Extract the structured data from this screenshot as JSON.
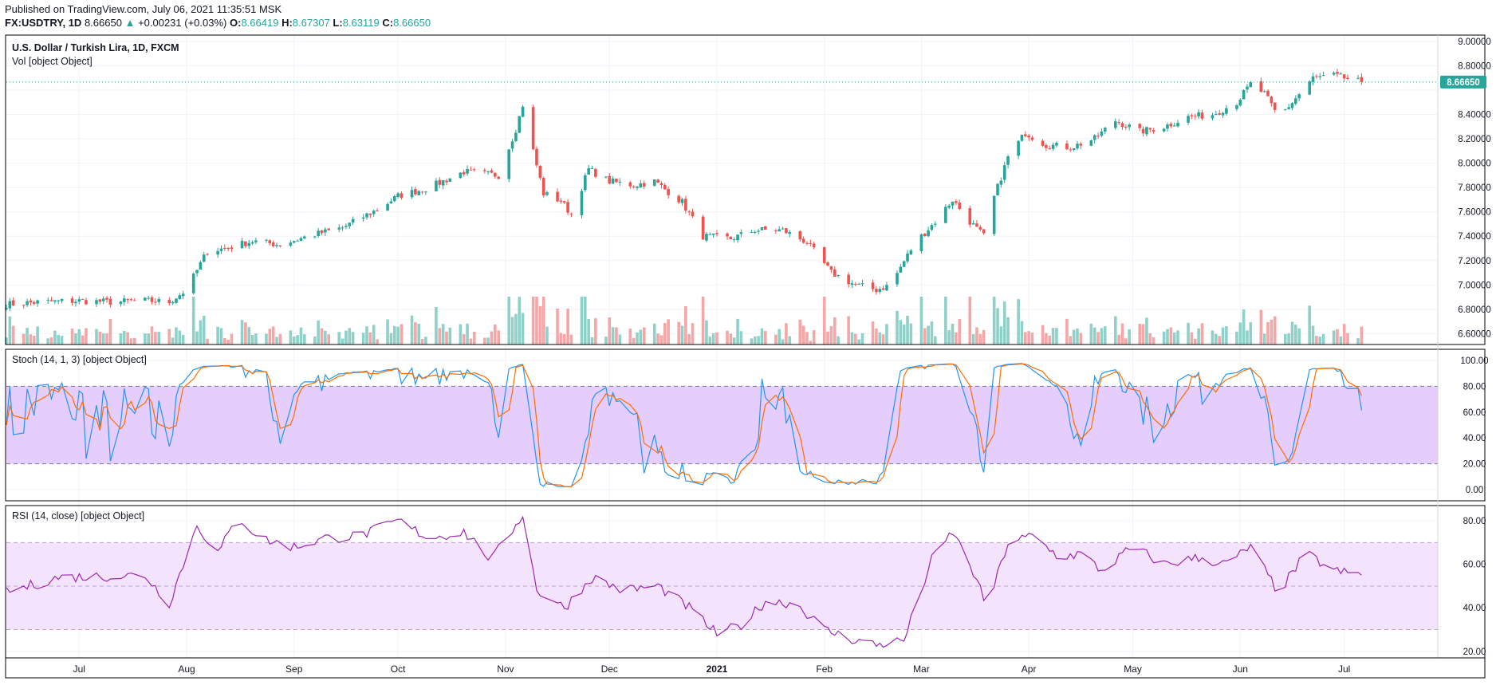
{
  "header": {
    "published": "Published on TradingView.com, July 06, 2021 11:35:51 MSK",
    "symbol": "FX:USDTRY, 1D",
    "last": "8.66650",
    "change": "+0.00231 (+0.03%)",
    "open_label": "O:",
    "open": "8.66419",
    "high_label": "H:",
    "high": "8.67307",
    "low_label": "L:",
    "low": "8.63119",
    "close_label": "C:",
    "close": "8.66650"
  },
  "panes": {
    "main_title": "U.S. Dollar / Turkish Lira, 1D, FXCM",
    "vol_title": "Vol [object Object]",
    "stoch_title": "Stoch (14, 1, 3) [object Object]",
    "rsi_title": "RSI (14, close) [object Object]",
    "last_price_badge": "8.66650"
  },
  "colors": {
    "up": "#26a69a",
    "down": "#ef5350",
    "vol_up": "#8fd1c8",
    "vol_down": "#f5a6a6",
    "stoch_k": "#2196f3",
    "stoch_d": "#ff6d00",
    "stoch_band": "#e1c4fb",
    "rsi_line": "#9c27b0",
    "rsi_band": "#f3e0fc",
    "grid": "#f0f3fa",
    "border": "#000000",
    "text": "#131722"
  },
  "chart_data": [
    {
      "type": "candlestick",
      "title": "U.S. Dollar / Turkish Lira, 1D, FXCM",
      "ylim": [
        6.55,
        9.0
      ],
      "y_ticks": [
        "9.00000",
        "8.80000",
        "8.60000",
        "8.40000",
        "8.20000",
        "8.00000",
        "7.80000",
        "7.60000",
        "7.40000",
        "7.20000",
        "7.00000",
        "6.80000",
        "6.60000"
      ],
      "x_tick_labels": [
        "Jul",
        "Aug",
        "Sep",
        "Oct",
        "Nov",
        "Dec",
        "2021",
        "Feb",
        "Mar",
        "Apr",
        "May",
        "Jun",
        "Jul"
      ],
      "anchors": [
        [
          "2020-06-10",
          6.84
        ],
        [
          "2020-06-20",
          6.86
        ],
        [
          "2020-07-01",
          6.87
        ],
        [
          "2020-07-10",
          6.86
        ],
        [
          "2020-07-20",
          6.87
        ],
        [
          "2020-07-27",
          6.86
        ],
        [
          "2020-08-01",
          6.96
        ],
        [
          "2020-08-07",
          7.28
        ],
        [
          "2020-08-12",
          7.3
        ],
        [
          "2020-08-20",
          7.36
        ],
        [
          "2020-08-28",
          7.33
        ],
        [
          "2020-09-05",
          7.4
        ],
        [
          "2020-09-15",
          7.47
        ],
        [
          "2020-09-25",
          7.62
        ],
        [
          "2020-10-01",
          7.73
        ],
        [
          "2020-10-10",
          7.8
        ],
        [
          "2020-10-20",
          7.93
        ],
        [
          "2020-10-30",
          7.9
        ],
        [
          "2020-11-04",
          8.28
        ],
        [
          "2020-11-06",
          8.48
        ],
        [
          "2020-11-09",
          8.1
        ],
        [
          "2020-11-12",
          7.75
        ],
        [
          "2020-11-17",
          7.69
        ],
        [
          "2020-11-20",
          7.58
        ],
        [
          "2020-11-25",
          7.95
        ],
        [
          "2020-12-01",
          7.85
        ],
        [
          "2020-12-08",
          7.82
        ],
        [
          "2020-12-14",
          7.85
        ],
        [
          "2020-12-22",
          7.68
        ],
        [
          "2020-12-28",
          7.4
        ],
        [
          "2021-01-05",
          7.38
        ],
        [
          "2021-01-12",
          7.45
        ],
        [
          "2021-01-20",
          7.45
        ],
        [
          "2021-01-27",
          7.35
        ],
        [
          "2021-02-03",
          7.1
        ],
        [
          "2021-02-10",
          7.0
        ],
        [
          "2021-02-16",
          6.96
        ],
        [
          "2021-02-20",
          7.0
        ],
        [
          "2021-02-27",
          7.34
        ],
        [
          "2021-03-05",
          7.52
        ],
        [
          "2021-03-10",
          7.7
        ],
        [
          "2021-03-15",
          7.52
        ],
        [
          "2021-03-19",
          7.4
        ],
        [
          "2021-03-22",
          7.72
        ],
        [
          "2021-03-26",
          8.05
        ],
        [
          "2021-03-31",
          8.25
        ],
        [
          "2021-04-06",
          8.15
        ],
        [
          "2021-04-13",
          8.13
        ],
        [
          "2021-04-20",
          8.2
        ],
        [
          "2021-04-26",
          8.35
        ],
        [
          "2021-05-03",
          8.26
        ],
        [
          "2021-05-10",
          8.3
        ],
        [
          "2021-05-17",
          8.38
        ],
        [
          "2021-05-24",
          8.4
        ],
        [
          "2021-05-31",
          8.5
        ],
        [
          "2021-06-04",
          8.65
        ],
        [
          "2021-06-08",
          8.57
        ],
        [
          "2021-06-12",
          8.38
        ],
        [
          "2021-06-16",
          8.5
        ],
        [
          "2021-06-22",
          8.7
        ],
        [
          "2021-06-28",
          8.72
        ],
        [
          "2021-07-06",
          8.6665
        ]
      ],
      "last": 8.6665
    },
    {
      "type": "bar",
      "title": "Vol",
      "note": "volume histogram overlaid at bottom of main pane, colored by candle direction"
    },
    {
      "type": "line",
      "title": "Stoch (14, 1, 3)",
      "ylim": [
        0,
        100
      ],
      "y_ticks": [
        "100.00",
        "80.00",
        "60.00",
        "40.00",
        "20.00",
        "0.00"
      ],
      "bands": [
        20,
        80
      ],
      "series": [
        {
          "name": "K"
        },
        {
          "name": "D"
        }
      ]
    },
    {
      "type": "line",
      "title": "RSI (14, close)",
      "ylim": [
        17,
        87
      ],
      "y_ticks": [
        "80.00",
        "60.00",
        "40.00",
        "20.00"
      ],
      "bands": [
        30,
        70
      ],
      "midline": 50,
      "anchors": [
        [
          "2020-06-10",
          47
        ],
        [
          "2020-06-25",
          54
        ],
        [
          "2020-07-20",
          55
        ],
        [
          "2020-07-27",
          42
        ],
        [
          "2020-08-04",
          78
        ],
        [
          "2020-08-10",
          65
        ],
        [
          "2020-08-16",
          82
        ],
        [
          "2020-08-22",
          72
        ],
        [
          "2020-09-01",
          68
        ],
        [
          "2020-09-10",
          72
        ],
        [
          "2020-09-20",
          73
        ],
        [
          "2020-10-01",
          80
        ],
        [
          "2020-10-10",
          72
        ],
        [
          "2020-10-20",
          75
        ],
        [
          "2020-10-28",
          62
        ],
        [
          "2020-11-06",
          83
        ],
        [
          "2020-11-10",
          48
        ],
        [
          "2020-11-18",
          40
        ],
        [
          "2020-11-26",
          54
        ],
        [
          "2020-12-05",
          48
        ],
        [
          "2020-12-15",
          50
        ],
        [
          "2020-12-24",
          40
        ],
        [
          "2021-01-01",
          28
        ],
        [
          "2021-01-08",
          32
        ],
        [
          "2021-01-15",
          43
        ],
        [
          "2021-01-24",
          42
        ],
        [
          "2021-02-01",
          30
        ],
        [
          "2021-02-08",
          26
        ],
        [
          "2021-02-16",
          23
        ],
        [
          "2021-02-24",
          25
        ],
        [
          "2021-03-04",
          62
        ],
        [
          "2021-03-10",
          75
        ],
        [
          "2021-03-15",
          60
        ],
        [
          "2021-03-20",
          40
        ],
        [
          "2021-03-26",
          70
        ],
        [
          "2021-04-02",
          73
        ],
        [
          "2021-04-10",
          63
        ],
        [
          "2021-04-16",
          65
        ],
        [
          "2021-04-22",
          57
        ],
        [
          "2021-05-01",
          68
        ],
        [
          "2021-05-10",
          60
        ],
        [
          "2021-05-20",
          63
        ],
        [
          "2021-05-28",
          60
        ],
        [
          "2021-06-04",
          68
        ],
        [
          "2021-06-12",
          47
        ],
        [
          "2021-06-20",
          65
        ],
        [
          "2021-06-28",
          57
        ],
        [
          "2021-07-06",
          55
        ]
      ]
    }
  ]
}
